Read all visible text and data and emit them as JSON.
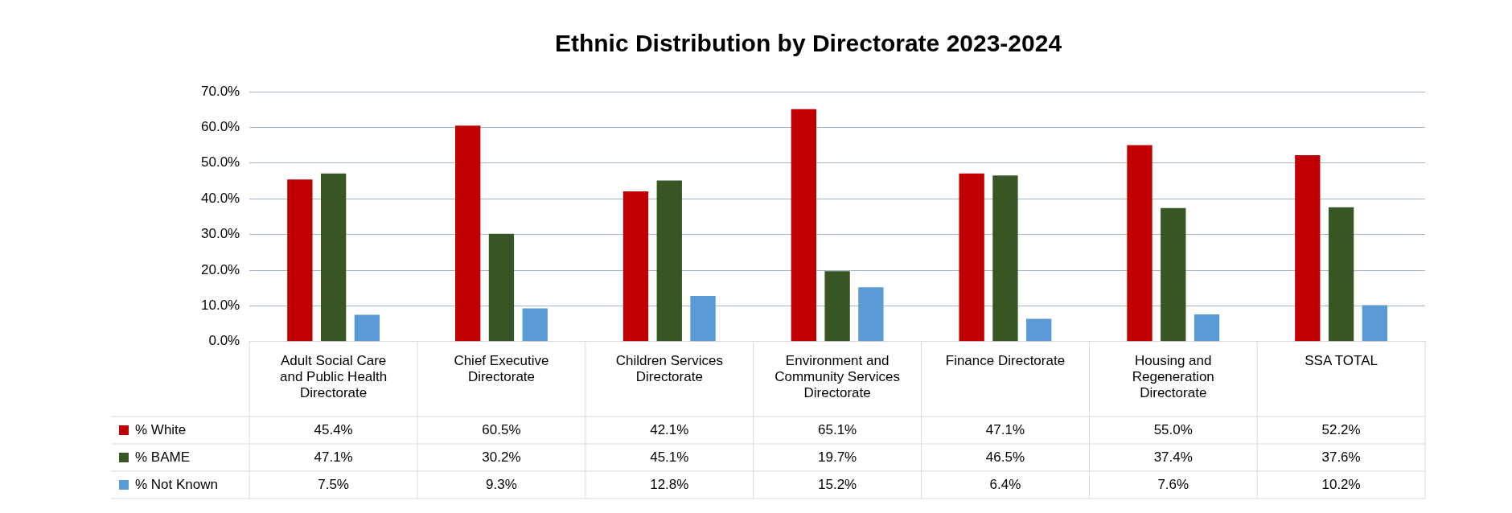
{
  "chart_data": {
    "type": "bar",
    "title": "Ethnic Distribution by Directorate 2023-2024",
    "categories": [
      "Adult Social Care and Public Health Directorate",
      "Chief Executive Directorate",
      "Children Services Directorate",
      "Environment and Community Services Directorate",
      "Finance Directorate",
      "Housing and Regeneration Directorate",
      "SSA TOTAL"
    ],
    "series": [
      {
        "name": "% White",
        "color": "#c00000",
        "values": [
          45.4,
          60.5,
          42.1,
          65.1,
          47.1,
          55.0,
          52.2
        ],
        "value_labels": [
          "45.4%",
          "60.5%",
          "42.1%",
          "65.1%",
          "47.1%",
          "55.0%",
          "52.2%"
        ]
      },
      {
        "name": "% BAME",
        "color": "#375623",
        "values": [
          47.1,
          30.2,
          45.1,
          19.7,
          46.5,
          37.4,
          37.6
        ],
        "value_labels": [
          "47.1%",
          "30.2%",
          "45.1%",
          "19.7%",
          "46.5%",
          "37.4%",
          "37.6%"
        ]
      },
      {
        "name": "% Not Known",
        "color": "#5b9bd5",
        "values": [
          7.5,
          9.3,
          12.8,
          15.2,
          6.4,
          7.6,
          10.2
        ],
        "value_labels": [
          "7.5%",
          "9.3%",
          "12.8%",
          "15.2%",
          "6.4%",
          "7.6%",
          "10.2%"
        ]
      }
    ],
    "ylim": [
      0,
      70
    ],
    "yticks": [
      {
        "value": 0,
        "label": "0.0%"
      },
      {
        "value": 10,
        "label": "10.0%"
      },
      {
        "value": 20,
        "label": "20.0%"
      },
      {
        "value": 30,
        "label": "30.0%"
      },
      {
        "value": 40,
        "label": "40.0%"
      },
      {
        "value": 50,
        "label": "50.0%"
      },
      {
        "value": 60,
        "label": "60.0%"
      },
      {
        "value": 70,
        "label": "70.0%"
      }
    ],
    "grid": "y",
    "legend": "bottom"
  }
}
